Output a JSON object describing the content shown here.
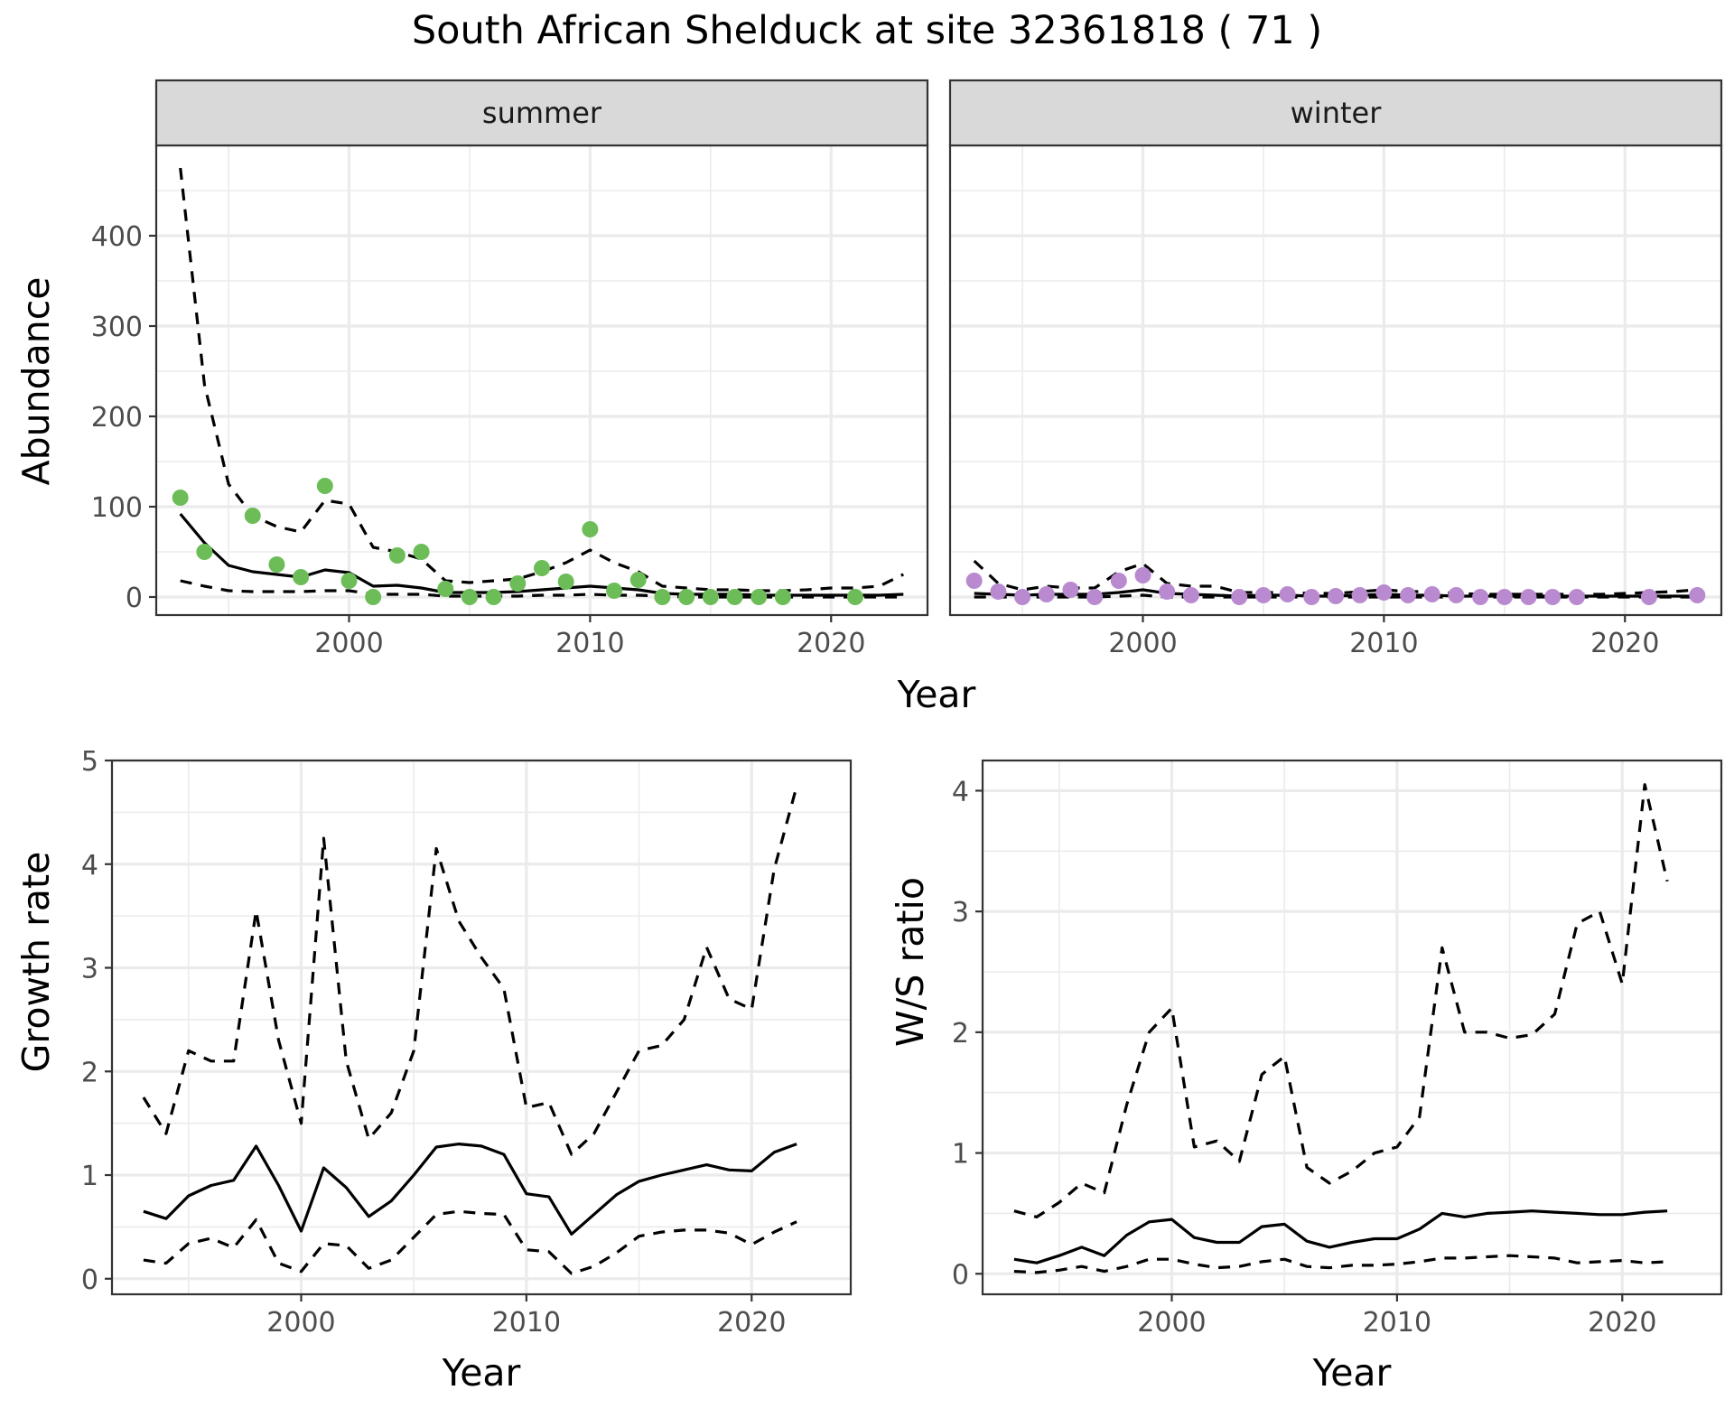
{
  "figure": {
    "title": "South African Shelduck at site 32361818 ( 71 )",
    "colors": {
      "summer_points": "#6cbd58",
      "winter_points": "#b98ad0",
      "lines": "#000000",
      "strip": "#d9d9d9"
    }
  },
  "chart_data": [
    {
      "type": "line",
      "panel": "summer",
      "strip_label": "summer",
      "xlabel": "Year",
      "ylabel": "Abundance",
      "xlim": [
        1992,
        2024
      ],
      "ylim": [
        -20,
        500
      ],
      "x_ticks": [
        2000,
        2010,
        2020
      ],
      "y_ticks": [
        0,
        100,
        200,
        300,
        400
      ],
      "grid": true,
      "x": [
        1993,
        1994,
        1995,
        1996,
        1997,
        1998,
        1999,
        2000,
        2001,
        2002,
        2003,
        2004,
        2005,
        2006,
        2007,
        2008,
        2009,
        2010,
        2011,
        2012,
        2013,
        2014,
        2015,
        2016,
        2017,
        2018,
        2019,
        2020,
        2021,
        2022,
        2023
      ],
      "series": [
        {
          "role": "mean",
          "line": "solid",
          "values": [
            92,
            60,
            35,
            28,
            25,
            22,
            30,
            27,
            12,
            13,
            10,
            5,
            5,
            5,
            6,
            8,
            10,
            12,
            10,
            8,
            4,
            3,
            3,
            3,
            2,
            2,
            2,
            2,
            2,
            2,
            3
          ]
        },
        {
          "role": "upper",
          "line": "dashed",
          "values": [
            475,
            235,
            125,
            90,
            78,
            72,
            107,
            103,
            55,
            50,
            42,
            18,
            16,
            18,
            20,
            28,
            38,
            52,
            38,
            28,
            12,
            10,
            8,
            8,
            7,
            7,
            8,
            10,
            10,
            12,
            25
          ]
        },
        {
          "role": "lower",
          "line": "dashed",
          "values": [
            18,
            12,
            7,
            6,
            6,
            6,
            7,
            7,
            3,
            3,
            3,
            1,
            1,
            1,
            1,
            2,
            2,
            3,
            2,
            2,
            1,
            0,
            0,
            0,
            0,
            0,
            0,
            0,
            0,
            0,
            0
          ]
        }
      ],
      "points": {
        "x": [
          1993,
          1994,
          1996,
          1997,
          1998,
          1999,
          2000,
          2001,
          2002,
          2003,
          2004,
          2005,
          2006,
          2007,
          2008,
          2009,
          2010,
          2011,
          2012,
          2013,
          2014,
          2015,
          2016,
          2017,
          2018,
          2021
        ],
        "y": [
          110,
          50,
          90,
          36,
          22,
          123,
          18,
          0,
          46,
          50,
          9,
          0,
          0,
          15,
          32,
          17,
          75,
          7,
          19,
          0,
          0,
          0,
          0,
          0,
          0,
          0
        ]
      }
    },
    {
      "type": "line",
      "panel": "winter",
      "strip_label": "winter",
      "xlabel": "Year",
      "ylabel": "Abundance",
      "xlim": [
        1992,
        2024
      ],
      "ylim": [
        -20,
        500
      ],
      "x_ticks": [
        2000,
        2010,
        2020
      ],
      "y_ticks": [
        0,
        100,
        200,
        300,
        400
      ],
      "grid": true,
      "x": [
        1993,
        1994,
        1995,
        1996,
        1997,
        1998,
        1999,
        2000,
        2001,
        2002,
        2003,
        2004,
        2005,
        2006,
        2007,
        2008,
        2009,
        2010,
        2011,
        2012,
        2013,
        2014,
        2015,
        2016,
        2017,
        2018,
        2019,
        2020,
        2021,
        2022,
        2023
      ],
      "series": [
        {
          "role": "mean",
          "line": "solid",
          "values": [
            4,
            3,
            2,
            3,
            3,
            3,
            5,
            8,
            4,
            3,
            2,
            1,
            2,
            2,
            1,
            1,
            2,
            3,
            2,
            2,
            1,
            1,
            1,
            1,
            1,
            1,
            1,
            1,
            1,
            1,
            1
          ]
        },
        {
          "role": "upper",
          "line": "dashed",
          "values": [
            40,
            15,
            8,
            12,
            10,
            10,
            28,
            37,
            15,
            12,
            12,
            5,
            5,
            5,
            4,
            4,
            6,
            8,
            6,
            6,
            4,
            3,
            3,
            3,
            3,
            3,
            3,
            4,
            5,
            6,
            8
          ]
        },
        {
          "role": "lower",
          "line": "dashed",
          "values": [
            0,
            0,
            0,
            0,
            0,
            0,
            1,
            2,
            0,
            0,
            0,
            0,
            0,
            0,
            0,
            0,
            0,
            0,
            0,
            0,
            0,
            0,
            0,
            0,
            0,
            0,
            0,
            0,
            0,
            0,
            0
          ]
        }
      ],
      "points": {
        "x": [
          1993,
          1994,
          1995,
          1996,
          1997,
          1998,
          1999,
          2000,
          2001,
          2002,
          2004,
          2005,
          2006,
          2007,
          2008,
          2009,
          2010,
          2011,
          2012,
          2013,
          2014,
          2015,
          2016,
          2017,
          2018,
          2021,
          2023
        ],
        "y": [
          18,
          6,
          0,
          3,
          8,
          0,
          18,
          24,
          6,
          2,
          0,
          2,
          3,
          0,
          1,
          2,
          5,
          2,
          3,
          2,
          0,
          0,
          0,
          0,
          0,
          0,
          2
        ]
      }
    },
    {
      "type": "line",
      "panel": "growth",
      "xlabel": "Year",
      "ylabel": "Growth rate",
      "xlim": [
        1991.6,
        2024.4
      ],
      "ylim": [
        -0.15,
        5.0
      ],
      "x_ticks": [
        2000,
        2010,
        2020
      ],
      "y_ticks": [
        0,
        1,
        2,
        3,
        4,
        5
      ],
      "grid": true,
      "x": [
        1993,
        1994,
        1995,
        1996,
        1997,
        1998,
        1999,
        2000,
        2001,
        2002,
        2003,
        2004,
        2005,
        2006,
        2007,
        2008,
        2009,
        2010,
        2011,
        2012,
        2013,
        2014,
        2015,
        2016,
        2017,
        2018,
        2019,
        2020,
        2021,
        2022
      ],
      "series": [
        {
          "role": "mean",
          "line": "solid",
          "values": [
            0.65,
            0.58,
            0.8,
            0.9,
            0.95,
            1.28,
            0.9,
            0.46,
            1.07,
            0.88,
            0.6,
            0.75,
            1.0,
            1.27,
            1.3,
            1.28,
            1.2,
            0.82,
            0.79,
            0.43,
            0.62,
            0.81,
            0.94,
            1.0,
            1.05,
            1.1,
            1.05,
            1.04,
            1.22,
            1.3
          ]
        },
        {
          "role": "upper",
          "line": "dashed",
          "values": [
            1.75,
            1.4,
            2.2,
            2.1,
            2.1,
            3.55,
            2.3,
            1.5,
            4.25,
            2.1,
            1.35,
            1.6,
            2.2,
            4.15,
            3.45,
            3.1,
            2.8,
            1.65,
            1.7,
            1.2,
            1.4,
            1.8,
            2.2,
            2.25,
            2.5,
            3.2,
            2.7,
            2.6,
            3.95,
            4.75
          ]
        },
        {
          "role": "lower",
          "line": "dashed",
          "values": [
            0.18,
            0.15,
            0.34,
            0.39,
            0.3,
            0.57,
            0.15,
            0.07,
            0.34,
            0.32,
            0.1,
            0.18,
            0.4,
            0.62,
            0.65,
            0.63,
            0.62,
            0.28,
            0.26,
            0.05,
            0.12,
            0.25,
            0.41,
            0.45,
            0.47,
            0.47,
            0.44,
            0.33,
            0.45,
            0.55
          ]
        }
      ]
    },
    {
      "type": "line",
      "panel": "ratio",
      "xlabel": "Year",
      "ylabel": "W/S ratio",
      "xlim": [
        1991.6,
        2024.4
      ],
      "ylim": [
        -0.17,
        4.25
      ],
      "x_ticks": [
        2000,
        2010,
        2020
      ],
      "y_ticks": [
        0,
        1,
        2,
        3,
        4
      ],
      "grid": true,
      "x": [
        1993,
        1994,
        1995,
        1996,
        1997,
        1998,
        1999,
        2000,
        2001,
        2002,
        2003,
        2004,
        2005,
        2006,
        2007,
        2008,
        2009,
        2010,
        2011,
        2012,
        2013,
        2014,
        2015,
        2016,
        2017,
        2018,
        2019,
        2020,
        2021,
        2022
      ],
      "series": [
        {
          "role": "mean",
          "line": "solid",
          "values": [
            0.12,
            0.09,
            0.15,
            0.22,
            0.15,
            0.32,
            0.43,
            0.45,
            0.3,
            0.26,
            0.26,
            0.39,
            0.41,
            0.27,
            0.22,
            0.26,
            0.29,
            0.29,
            0.37,
            0.5,
            0.47,
            0.5,
            0.51,
            0.52,
            0.51,
            0.5,
            0.49,
            0.49,
            0.51,
            0.52
          ]
        },
        {
          "role": "upper",
          "line": "dashed",
          "values": [
            0.52,
            0.47,
            0.59,
            0.75,
            0.67,
            1.4,
            2.0,
            2.2,
            1.05,
            1.1,
            0.93,
            1.65,
            1.8,
            0.88,
            0.75,
            0.85,
            1.0,
            1.05,
            1.3,
            2.7,
            2.0,
            2.0,
            1.95,
            1.98,
            2.15,
            2.9,
            3.0,
            2.4,
            4.05,
            3.25
          ]
        },
        {
          "role": "lower",
          "line": "dashed",
          "values": [
            0.02,
            0.01,
            0.03,
            0.06,
            0.02,
            0.06,
            0.12,
            0.12,
            0.08,
            0.05,
            0.06,
            0.1,
            0.12,
            0.06,
            0.05,
            0.07,
            0.07,
            0.08,
            0.1,
            0.13,
            0.13,
            0.14,
            0.15,
            0.14,
            0.13,
            0.09,
            0.1,
            0.11,
            0.09,
            0.1
          ]
        }
      ]
    }
  ]
}
